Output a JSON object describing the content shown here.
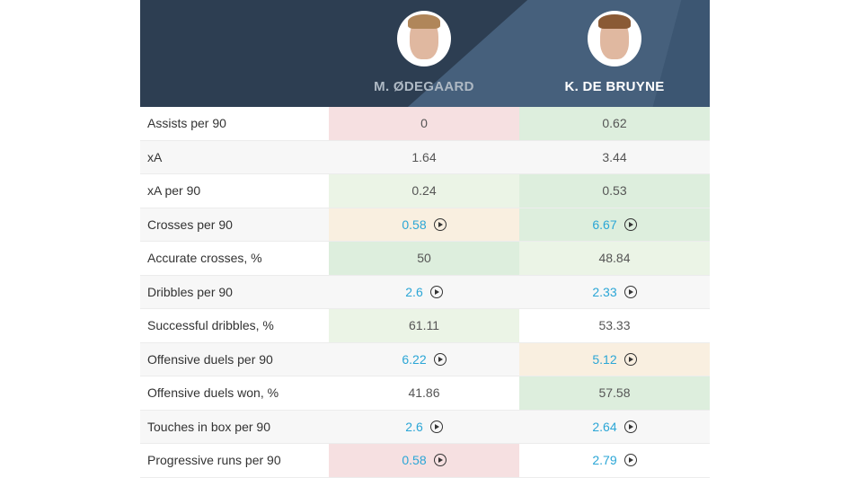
{
  "players": [
    {
      "name": "M. ØDEGAARD"
    },
    {
      "name": "K. DE BRUYNE"
    }
  ],
  "colors": {
    "better": "#ddeedd",
    "slightly_better": "#ebf4e6",
    "worse": "#f6e0e1",
    "slightly_worse": "#f9efe0",
    "link": "#2ba6d6",
    "header": "#2d3e52"
  },
  "rows": [
    {
      "label": "Assists per 90",
      "values": [
        "0",
        "0.62"
      ]
    },
    {
      "label": "xA",
      "values": [
        "1.64",
        "3.44"
      ]
    },
    {
      "label": "xA per 90",
      "values": [
        "0.24",
        "0.53"
      ]
    },
    {
      "label": "Crosses per 90",
      "values": [
        "0.58",
        "6.67"
      ],
      "video": true
    },
    {
      "label": "Accurate crosses, %",
      "values": [
        "50",
        "48.84"
      ]
    },
    {
      "label": "Dribbles per 90",
      "values": [
        "2.6",
        "2.33"
      ],
      "video": true
    },
    {
      "label": "Successful dribbles, %",
      "values": [
        "61.11",
        "53.33"
      ]
    },
    {
      "label": "Offensive duels per 90",
      "values": [
        "6.22",
        "5.12"
      ],
      "video": true
    },
    {
      "label": "Offensive duels won, %",
      "values": [
        "41.86",
        "57.58"
      ]
    },
    {
      "label": "Touches in box per 90",
      "values": [
        "2.6",
        "2.64"
      ],
      "video": true
    },
    {
      "label": "Progressive runs per 90",
      "values": [
        "0.58",
        "2.79"
      ],
      "video": true
    }
  ]
}
